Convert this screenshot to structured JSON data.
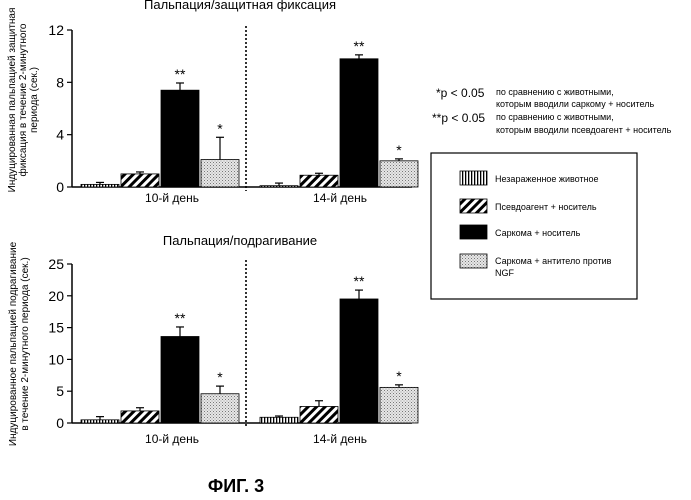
{
  "figure": {
    "caption": "ФИГ. 3"
  },
  "legend": {
    "items": [
      {
        "label": "Незараженное животное",
        "pattern": "vstripes"
      },
      {
        "label": "Псевдоагент + носитель",
        "pattern": "diag"
      },
      {
        "label": "Саркома + носитель",
        "pattern": "solid"
      },
      {
        "label": "Саркома + антитело против NGF",
        "pattern": "dots"
      }
    ]
  },
  "significance": {
    "single_marker": "*p < 0.05",
    "single_text_line1": "по сравнению с животными,",
    "single_text_line2": "которым вводили саркому + носитель",
    "double_marker": "**p < 0.05",
    "double_text_line1": "по сравнению с животными,",
    "double_text_line2": "которым вводили псевдоагент + носитель"
  },
  "colors": {
    "solid_bar": "#000000",
    "dots_bar": "#cfcfcf",
    "axis": "#000000"
  },
  "chart_data": [
    {
      "type": "bar",
      "title": "Пальпация/защитная фиксация",
      "ylabel_line1": "Индуцированная пальпацией защитная",
      "ylabel_line2": "фиксация в течение 2-минутного",
      "ylabel_line3": "периода (сек.)",
      "ylim": [
        0,
        12
      ],
      "yticks": [
        "0",
        "4",
        "8",
        "12"
      ],
      "categories": [
        "10-й день",
        "14-й день"
      ],
      "series": [
        {
          "name": "Незараженное животное",
          "values": [
            0.2,
            0.1
          ],
          "errors": [
            0.15,
            0.2
          ],
          "stars": [
            "",
            ""
          ]
        },
        {
          "name": "Псевдоагент + носитель",
          "values": [
            1.0,
            0.9
          ],
          "errors": [
            0.15,
            0.15
          ],
          "stars": [
            "",
            ""
          ]
        },
        {
          "name": "Саркома + носитель",
          "values": [
            7.4,
            9.8
          ],
          "errors": [
            0.55,
            0.3
          ],
          "stars": [
            "**",
            "**"
          ]
        },
        {
          "name": "Саркома + антитело против NGF",
          "values": [
            2.1,
            2.0
          ],
          "errors": [
            1.7,
            0.15
          ],
          "stars": [
            "*",
            "*"
          ]
        }
      ]
    },
    {
      "type": "bar",
      "title": "Пальпация/подрагивание",
      "ylabel_line1": "Индуцированное пальпацией подрагивание",
      "ylabel_line2": "в течение 2-минутного периода (сек.)",
      "ylim": [
        0,
        25
      ],
      "yticks": [
        "0",
        "5",
        "10",
        "15",
        "20",
        "25"
      ],
      "categories": [
        "10-й день",
        "14-й день"
      ],
      "series": [
        {
          "name": "Незараженное животное",
          "values": [
            0.5,
            0.9
          ],
          "errors": [
            0.5,
            0.2
          ],
          "stars": [
            "",
            ""
          ]
        },
        {
          "name": "Псевдоагент + носитель",
          "values": [
            1.9,
            2.6
          ],
          "errors": [
            0.5,
            0.9
          ],
          "stars": [
            "",
            ""
          ]
        },
        {
          "name": "Саркома + носитель",
          "values": [
            13.6,
            19.5
          ],
          "errors": [
            1.5,
            1.4
          ],
          "stars": [
            "**",
            "**"
          ]
        },
        {
          "name": "Саркома + антитело против NGF",
          "values": [
            4.6,
            5.6
          ],
          "errors": [
            1.2,
            0.4
          ],
          "stars": [
            "*",
            "*"
          ]
        }
      ]
    }
  ]
}
